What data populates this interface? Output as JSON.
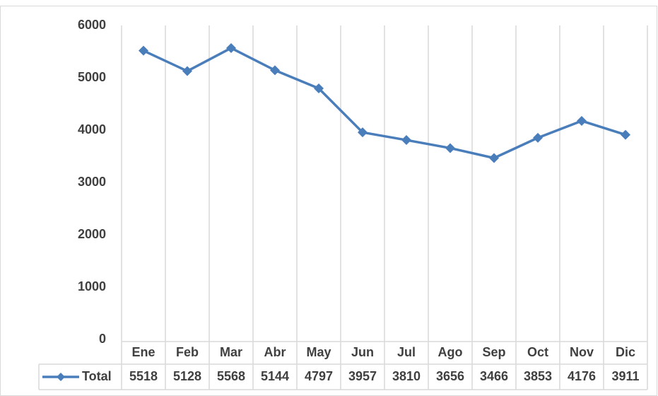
{
  "chart_data": {
    "type": "line",
    "categories": [
      "Ene",
      "Feb",
      "Mar",
      "Abr",
      "May",
      "Jun",
      "Jul",
      "Ago",
      "Sep",
      "Oct",
      "Nov",
      "Dic"
    ],
    "series": [
      {
        "name": "Total",
        "color": "#4a7ebb",
        "values": [
          5518,
          5128,
          5568,
          5144,
          4797,
          3957,
          3810,
          3656,
          3466,
          3853,
          4176,
          3911
        ]
      }
    ],
    "ylim": [
      0,
      6000
    ],
    "yticks": [
      0,
      1000,
      2000,
      3000,
      4000,
      5000,
      6000
    ],
    "data_table": true
  }
}
